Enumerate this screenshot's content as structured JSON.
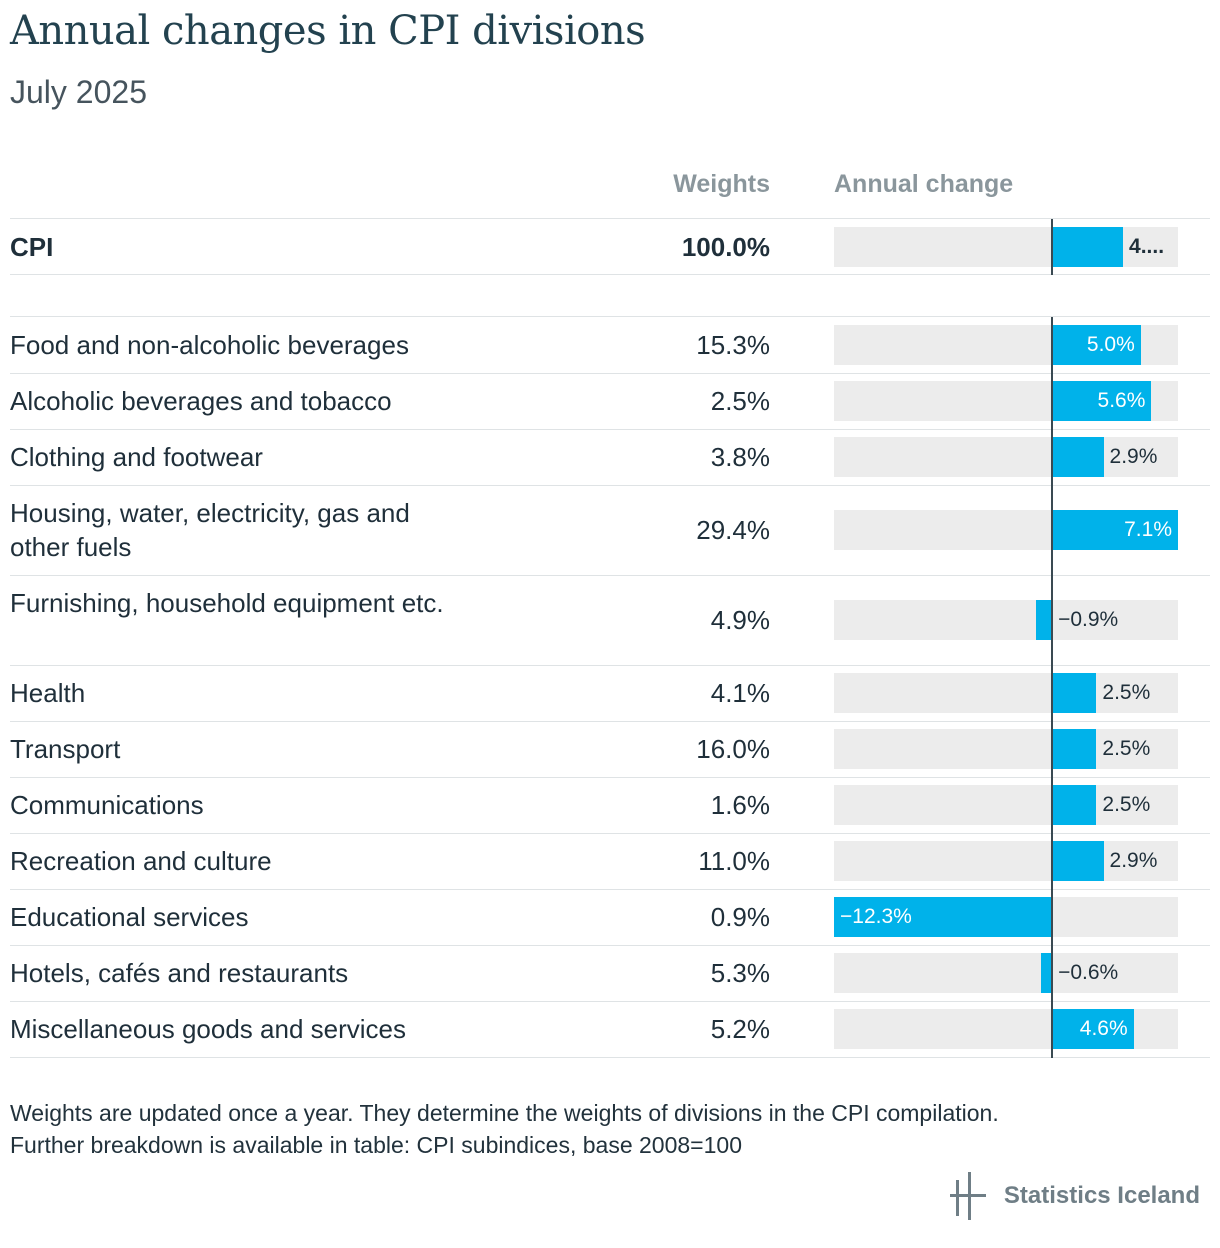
{
  "title": "Annual changes in CPI divisions",
  "subtitle": "July 2025",
  "columns": {
    "weights": "Weights",
    "annual_change": "Annual change"
  },
  "footnotes": [
    "Weights are updated once a year. They determine the weights of divisions in the CPI compilation.",
    "Further breakdown is available in table: CPI subindices, base 2008=100"
  ],
  "brand": "Statistics Iceland",
  "colors": {
    "bar": "#00b2ea",
    "track": "#ececec",
    "title": "#23424f"
  },
  "chart_data": {
    "type": "bar",
    "orientation": "horizontal",
    "xlim": [
      -12.3,
      7.1
    ],
    "summary": {
      "name": "CPI",
      "weight": "100.0%",
      "value": 4.0,
      "label": "4...."
    },
    "categories": [
      "Food and non-alcoholic beverages",
      "Alcoholic beverages and tobacco",
      "Clothing and footwear",
      "Housing, water, electricity, gas and other fuels",
      "Furnishing, household equipment etc.",
      "Health",
      "Transport",
      "Communications",
      "Recreation and culture",
      "Educational services",
      "Hotels, cafés and restaurants",
      "Miscellaneous goods and services"
    ],
    "weights": [
      "15.3%",
      "2.5%",
      "3.8%",
      "29.4%",
      "4.9%",
      "4.1%",
      "16.0%",
      "1.6%",
      "11.0%",
      "0.9%",
      "5.3%",
      "5.2%"
    ],
    "values": [
      5.0,
      5.6,
      2.9,
      7.1,
      -0.9,
      2.5,
      2.5,
      2.5,
      2.9,
      -12.3,
      -0.6,
      4.6
    ],
    "labels": [
      "5.0%",
      "5.6%",
      "2.9%",
      "7.1%",
      "−0.9%",
      "2.5%",
      "2.5%",
      "2.5%",
      "2.9%",
      "−12.3%",
      "−0.6%",
      "4.6%"
    ]
  }
}
